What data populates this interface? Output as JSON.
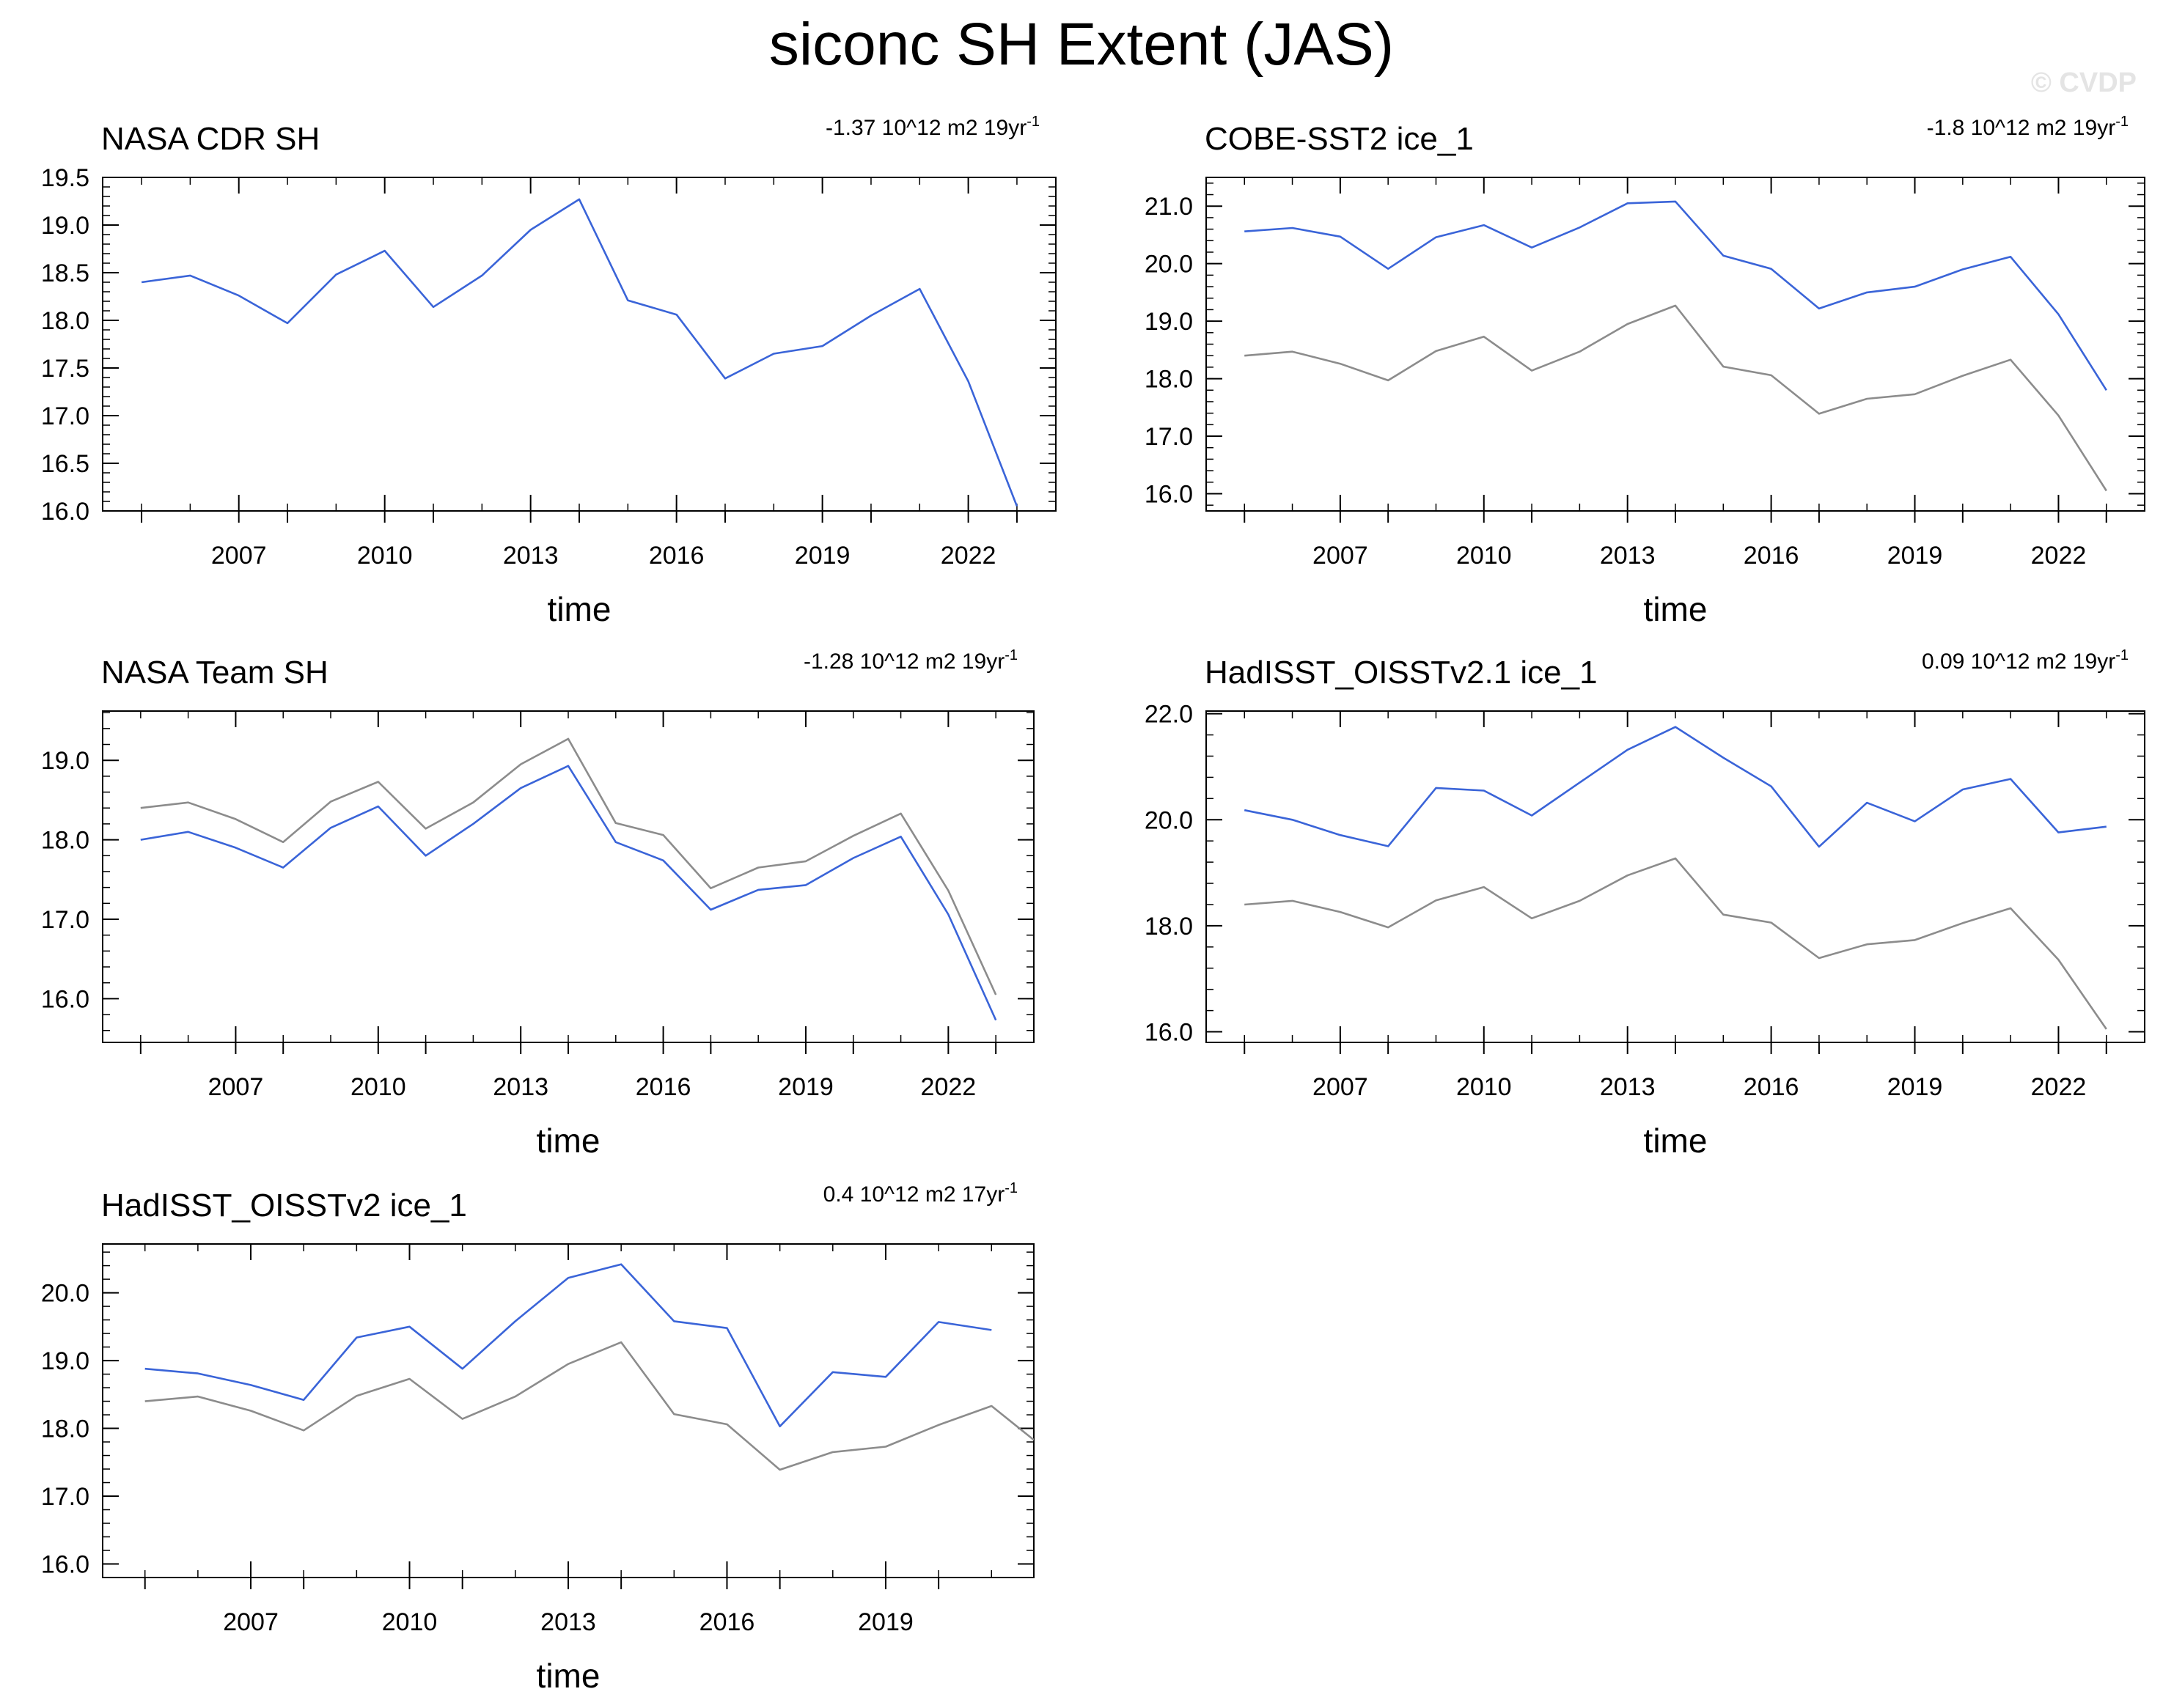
{
  "title": "siconc SH Extent (JAS)",
  "watermark": "© CVDP",
  "colors": {
    "model": "#3a64d8",
    "reference": "#8c8c8c",
    "axis": "#000000"
  },
  "chart_data": [
    {
      "type": "line",
      "title": "NASA CDR SH",
      "trend": "-1.37 10^12 m2 19yr",
      "trend_sup": "-1",
      "xlabel": "time",
      "ylabel": "",
      "xlim": [
        2004.2,
        2023.8
      ],
      "ylim": [
        16.0,
        19.5
      ],
      "yticks": [
        16.0,
        16.5,
        17.0,
        17.5,
        18.0,
        18.5,
        19.0,
        19.5
      ],
      "xticks": [
        2007,
        2010,
        2013,
        2016,
        2019,
        2022
      ],
      "grid": false,
      "series": [
        {
          "role": "model",
          "x": [
            2005,
            2006,
            2007,
            2008,
            2009,
            2010,
            2011,
            2012,
            2013,
            2014,
            2015,
            2016,
            2017,
            2018,
            2019,
            2020,
            2021,
            2022,
            2023
          ],
          "values": [
            18.4,
            18.47,
            18.26,
            17.97,
            18.48,
            18.73,
            18.14,
            18.47,
            18.95,
            19.27,
            18.21,
            18.06,
            17.39,
            17.65,
            17.73,
            18.05,
            18.33,
            17.36,
            16.05
          ]
        }
      ]
    },
    {
      "type": "line",
      "title": "COBE-SST2 ice_1",
      "trend": "-1.8 10^12 m2 19yr",
      "trend_sup": "-1",
      "xlabel": "time",
      "ylabel": "",
      "xlim": [
        2004.2,
        2023.8
      ],
      "ylim": [
        15.7,
        21.5
      ],
      "yticks": [
        16.0,
        17.0,
        18.0,
        19.0,
        20.0,
        21.0
      ],
      "xticks": [
        2007,
        2010,
        2013,
        2016,
        2019,
        2022
      ],
      "grid": false,
      "series": [
        {
          "role": "model",
          "x": [
            2005,
            2006,
            2007,
            2008,
            2009,
            2010,
            2011,
            2012,
            2013,
            2014,
            2015,
            2016,
            2017,
            2018,
            2019,
            2020,
            2021,
            2022,
            2023
          ],
          "values": [
            20.56,
            20.62,
            20.47,
            19.91,
            20.46,
            20.67,
            20.28,
            20.63,
            21.05,
            21.08,
            20.14,
            19.91,
            19.22,
            19.5,
            19.6,
            19.9,
            20.12,
            19.12,
            17.8
          ]
        },
        {
          "role": "reference",
          "x": [
            2005,
            2006,
            2007,
            2008,
            2009,
            2010,
            2011,
            2012,
            2013,
            2014,
            2015,
            2016,
            2017,
            2018,
            2019,
            2020,
            2021,
            2022,
            2023
          ],
          "values": [
            18.4,
            18.47,
            18.26,
            17.97,
            18.48,
            18.73,
            18.14,
            18.47,
            18.95,
            19.27,
            18.21,
            18.06,
            17.39,
            17.65,
            17.73,
            18.05,
            18.33,
            17.36,
            16.05
          ]
        }
      ]
    },
    {
      "type": "line",
      "title": "NASA Team SH",
      "trend": "-1.28 10^12 m2 19yr",
      "trend_sup": "-1",
      "xlabel": "time",
      "ylabel": "",
      "xlim": [
        2004.2,
        2023.8
      ],
      "ylim": [
        15.45,
        19.62
      ],
      "yticks": [
        16.0,
        17.0,
        18.0,
        19.0
      ],
      "xticks": [
        2007,
        2010,
        2013,
        2016,
        2019,
        2022
      ],
      "grid": false,
      "series": [
        {
          "role": "model",
          "x": [
            2005,
            2006,
            2007,
            2008,
            2009,
            2010,
            2011,
            2012,
            2013,
            2014,
            2015,
            2016,
            2017,
            2018,
            2019,
            2020,
            2021,
            2022,
            2023
          ],
          "values": [
            18.0,
            18.1,
            17.9,
            17.65,
            18.15,
            18.42,
            17.8,
            18.2,
            18.65,
            18.93,
            17.97,
            17.74,
            17.12,
            17.37,
            17.43,
            17.77,
            18.04,
            17.06,
            15.73
          ]
        },
        {
          "role": "reference",
          "x": [
            2005,
            2006,
            2007,
            2008,
            2009,
            2010,
            2011,
            2012,
            2013,
            2014,
            2015,
            2016,
            2017,
            2018,
            2019,
            2020,
            2021,
            2022,
            2023
          ],
          "values": [
            18.4,
            18.47,
            18.26,
            17.97,
            18.48,
            18.73,
            18.14,
            18.47,
            18.95,
            19.27,
            18.21,
            18.06,
            17.39,
            17.65,
            17.73,
            18.05,
            18.33,
            17.36,
            16.05
          ]
        }
      ]
    },
    {
      "type": "line",
      "title": "HadISST_OISSTv2.1 ice_1",
      "trend": "0.09 10^12 m2 19yr",
      "trend_sup": "-1",
      "xlabel": "time",
      "ylabel": "",
      "xlim": [
        2004.2,
        2023.8
      ],
      "ylim": [
        15.8,
        22.05
      ],
      "yticks": [
        16.0,
        18.0,
        20.0,
        22.0
      ],
      "xticks": [
        2007,
        2010,
        2013,
        2016,
        2019,
        2022
      ],
      "grid": false,
      "series": [
        {
          "role": "model",
          "x": [
            2005,
            2006,
            2007,
            2008,
            2009,
            2010,
            2011,
            2012,
            2013,
            2014,
            2015,
            2016,
            2017,
            2018,
            2019,
            2020,
            2021,
            2022,
            2023
          ],
          "values": [
            20.18,
            20.0,
            19.71,
            19.5,
            20.6,
            20.55,
            20.08,
            20.7,
            21.32,
            21.75,
            21.17,
            20.63,
            19.49,
            20.32,
            19.97,
            20.57,
            20.77,
            19.76,
            19.87
          ]
        },
        {
          "role": "reference",
          "x": [
            2005,
            2006,
            2007,
            2008,
            2009,
            2010,
            2011,
            2012,
            2013,
            2014,
            2015,
            2016,
            2017,
            2018,
            2019,
            2020,
            2021,
            2022,
            2023
          ],
          "values": [
            18.4,
            18.47,
            18.26,
            17.97,
            18.48,
            18.73,
            18.14,
            18.47,
            18.95,
            19.27,
            18.21,
            18.06,
            17.39,
            17.65,
            17.73,
            18.05,
            18.33,
            17.36,
            16.05
          ]
        }
      ]
    },
    {
      "type": "line",
      "title": "HadISST_OISSTv2 ice_1",
      "trend": "0.4 10^12 m2 17yr",
      "trend_sup": "-1",
      "xlabel": "time",
      "ylabel": "",
      "xlim": [
        2004.2,
        2021.8
      ],
      "ylim": [
        15.8,
        20.72
      ],
      "yticks": [
        16.0,
        17.0,
        18.0,
        19.0,
        20.0
      ],
      "xticks": [
        2007,
        2010,
        2013,
        2016,
        2019
      ],
      "grid": false,
      "series": [
        {
          "role": "model",
          "x": [
            2005,
            2006,
            2007,
            2008,
            2009,
            2010,
            2011,
            2012,
            2013,
            2014,
            2015,
            2016,
            2017,
            2018,
            2019,
            2020,
            2021
          ],
          "values": [
            18.88,
            18.81,
            18.64,
            18.42,
            19.34,
            19.5,
            18.88,
            19.58,
            20.22,
            20.42,
            19.58,
            19.48,
            18.03,
            18.83,
            18.76,
            19.57,
            19.45
          ]
        },
        {
          "role": "reference",
          "x": [
            2005,
            2006,
            2007,
            2008,
            2009,
            2010,
            2011,
            2012,
            2013,
            2014,
            2015,
            2016,
            2017,
            2018,
            2019,
            2020,
            2021,
            2021.8
          ],
          "values": [
            18.4,
            18.47,
            18.26,
            17.97,
            18.48,
            18.73,
            18.14,
            18.47,
            18.95,
            19.27,
            18.21,
            18.06,
            17.39,
            17.65,
            17.73,
            18.05,
            18.33,
            17.83
          ]
        }
      ]
    }
  ]
}
